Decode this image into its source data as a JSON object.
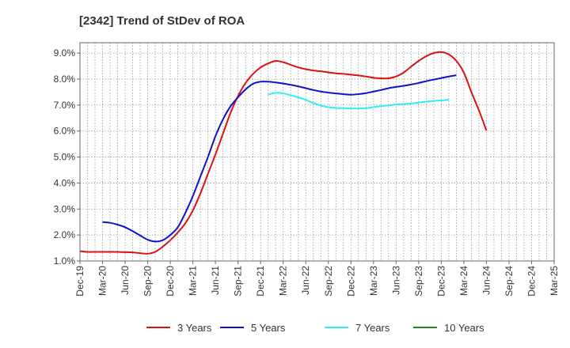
{
  "chart_data": {
    "type": "line",
    "title": "[2342]  Trend of StDev of ROA",
    "xlabel": "",
    "ylabel": "",
    "ylim": [
      1.0,
      9.4
    ],
    "y_ticks": [
      "1.0%",
      "2.0%",
      "3.0%",
      "4.0%",
      "5.0%",
      "6.0%",
      "7.0%",
      "8.0%",
      "9.0%"
    ],
    "y_tick_values": [
      1,
      2,
      3,
      4,
      5,
      6,
      7,
      8,
      9
    ],
    "x_ticks": [
      "Dec-19",
      "Mar-20",
      "Jun-20",
      "Sep-20",
      "Dec-20",
      "Mar-21",
      "Jun-21",
      "Sep-21",
      "Dec-21",
      "Mar-22",
      "Jun-22",
      "Sep-22",
      "Dec-22",
      "Mar-23",
      "Jun-23",
      "Sep-23",
      "Dec-23",
      "Mar-24",
      "Jun-24",
      "Sep-24",
      "Dec-24",
      "Mar-25"
    ],
    "grid": true,
    "legend_position": "bottom",
    "series": [
      {
        "name": "3 Years",
        "color": "#dd1111",
        "start_index": 0,
        "values": [
          1.38,
          1.35,
          1.35,
          1.35,
          1.35,
          1.35,
          1.34,
          1.33,
          1.3,
          1.28,
          1.35,
          1.55,
          1.8,
          2.1,
          2.45,
          2.95,
          3.6,
          4.35,
          5.1,
          5.9,
          6.7,
          7.35,
          7.85,
          8.2,
          8.45,
          8.6,
          8.7,
          8.65,
          8.55,
          8.45,
          8.38,
          8.33,
          8.3,
          8.26,
          8.22,
          8.2,
          8.17,
          8.14,
          8.1,
          8.05,
          8.03,
          8.03,
          8.1,
          8.25,
          8.48,
          8.7,
          8.88,
          9.0,
          9.04,
          8.95,
          8.7,
          8.25,
          7.5,
          6.8,
          6.02
        ]
      },
      {
        "name": "5 Years",
        "color": "#1111cc",
        "start_index": 3,
        "values": [
          2.5,
          2.47,
          2.4,
          2.3,
          2.15,
          1.98,
          1.82,
          1.75,
          1.8,
          2.0,
          2.3,
          2.85,
          3.5,
          4.25,
          5.0,
          5.8,
          6.45,
          6.95,
          7.3,
          7.6,
          7.82,
          7.9,
          7.9,
          7.87,
          7.83,
          7.78,
          7.72,
          7.65,
          7.58,
          7.52,
          7.48,
          7.45,
          7.42,
          7.4,
          7.42,
          7.46,
          7.52,
          7.58,
          7.65,
          7.7,
          7.74,
          7.79,
          7.85,
          7.92,
          7.98,
          8.04,
          8.1,
          8.15
        ]
      },
      {
        "name": "7 Years",
        "color": "#33eeee",
        "start_index": 25,
        "values": [
          7.4,
          7.47,
          7.45,
          7.38,
          7.3,
          7.2,
          7.08,
          6.98,
          6.92,
          6.89,
          6.88,
          6.87,
          6.87,
          6.88,
          6.92,
          6.96,
          6.99,
          7.02,
          7.04,
          7.06,
          7.1,
          7.13,
          7.16,
          7.18,
          7.2
        ]
      },
      {
        "name": "10 Years",
        "color": "#228822",
        "start_index": 0,
        "values": []
      }
    ]
  }
}
